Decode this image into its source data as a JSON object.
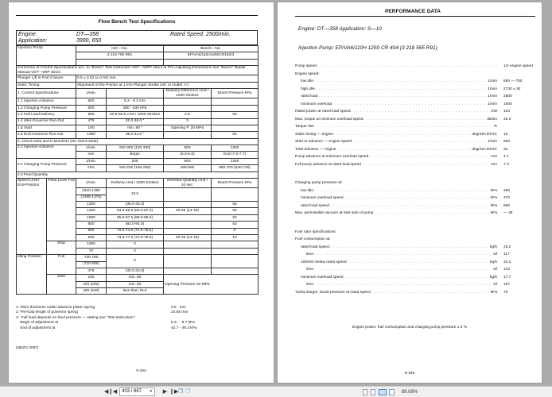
{
  "left_page": {
    "title": "Flow Bench Test Specifications",
    "header": {
      "engine_label": "Engine:",
      "engine_value": "DT—358",
      "rated_speed_label": "Rated Speed:",
      "rated_speed_value": "2500/min.",
      "application_label": "Application:",
      "application_value": "3990, 650"
    },
    "table": [
      [
        {
          "t": "Injection Pump",
          "cs": 2,
          "rs": 3,
          "va": "top"
        },
        {
          "t": "IHC—No.",
          "cs": 2,
          "c": 1
        },
        {
          "t": "Bosch—No.",
          "cs": 2,
          "c": 1
        }
      ],
      [
        {
          "t": "3 218 706 R91",
          "cs": 2,
          "c": 1
        },
        {
          "t": "EP/VA6/110H1250CR180/3",
          "cs": 2,
          "c": 1
        }
      ],
      [
        {
          "t": "",
          "cs": 2
        },
        {
          "t": "",
          "cs": 2
        }
      ],
      [
        {
          "t": "Correction of Control Specifications acc. to \"Bosch\" Test Instruction VDT—WPP 161/4 or Pre-Adjusting Dimensions see \"Bosch\" Repair Manual VDT—WIP 161/4",
          "cs": 6,
          "w": 1
        }
      ],
      [
        {
          "t": "Plunger Lift to Port Closure",
          "cs": 2
        },
        {
          "t": "0.5 ± 0.02 (± 0.04) mm",
          "cs": 4
        }
      ],
      [
        {
          "t": "Static Timing",
          "cs": 2
        },
        {
          "t": "Alignment of the Pointer at 1 mm Plunger Stroke (ref. to Outlet 'A')",
          "cs": 4
        }
      ],
      [
        {
          "t": "1.   Control Specifications",
          "cs": 2
        },
        {
          "t": "1/min.",
          "c": 1
        },
        {
          "t": ""
        },
        {
          "t": "Delivery Difference cm3 / 1000 Strokes",
          "c": 1,
          "w": 1
        },
        {
          "t": "Boost Pressure kPa",
          "c": 1,
          "w": 1
        }
      ],
      [
        {
          "t": "1.1 Injection Advance",
          "cs": 2
        },
        {
          "t": "800",
          "c": 1
        },
        {
          "t": "5.3 - 6.3 mm",
          "c": 1
        },
        {
          "t": ""
        },
        {
          "t": ""
        }
      ],
      [
        {
          "t": "1.2 Charging Pump Pressure",
          "cs": 2
        },
        {
          "t": "800",
          "c": 1
        },
        {
          "t": "480 - 530 kPa",
          "c": 1
        },
        {
          "t": ""
        },
        {
          "t": ""
        }
      ],
      [
        {
          "t": "1.3 Full Load Delivery",
          "cs": 2
        },
        {
          "t": "800",
          "c": 1
        },
        {
          "t": "92.5-93.5   cm3 / 1000 Strokes",
          "c": 1,
          "w": 1
        },
        {
          "t": "2.5",
          "c": 1
        },
        {
          "t": "53",
          "c": 1
        }
      ],
      [
        {
          "t": "1.4 Idler-Governor Run-Out",
          "cs": 2
        },
        {
          "t": "475",
          "c": 1
        },
        {
          "t": "32.0-38.0       \"",
          "c": 1
        },
        {
          "t": "3",
          "c": 1
        },
        {
          "t": ""
        }
      ],
      [
        {
          "t": "1.5 Start",
          "cs": 2
        },
        {
          "t": "100",
          "c": 1
        },
        {
          "t": "min. 80       \"",
          "c": 1
        },
        {
          "t": "Opening P. 20 MPa",
          "c": 1
        },
        {
          "t": ""
        }
      ],
      [
        {
          "t": "1.6 End-Governor Run-Out",
          "cs": 2
        },
        {
          "t": "1300",
          "c": 1
        },
        {
          "t": "36.0-44.0       \"",
          "c": 1
        },
        {
          "t": ""
        },
        {
          "t": "53",
          "c": 1
        }
      ],
      [
        {
          "t": "2.   Check Data and in Brackets (Re-check Data)",
          "cs": 6
        }
      ],
      [
        {
          "t": "2.1 Injection Advance",
          "cs": 2,
          "rs": 2,
          "va": "top"
        },
        {
          "t": "1/min.",
          "c": 1
        },
        {
          "t": "150-300 (120-330)",
          "c": 1
        },
        {
          "t": "800",
          "c": 1
        },
        {
          "t": "1250",
          "c": 1
        }
      ],
      [
        {
          "t": "mm",
          "c": 1
        },
        {
          "t": "Begin",
          "c": 1
        },
        {
          "t": "(5.0-6.8)",
          "c": 1
        },
        {
          "t": "End (7.0-7.7)",
          "c": 1
        }
      ],
      [
        {
          "t": "2.2 Charging Pump Pressure",
          "cs": 2,
          "rs": 2
        },
        {
          "t": "1/min.",
          "c": 1
        },
        {
          "t": "200",
          "c": 1
        },
        {
          "t": "800",
          "c": 1
        },
        {
          "t": "1250",
          "c": 1
        }
      ],
      [
        {
          "t": "kPa",
          "c": 1
        },
        {
          "t": "180-230 (160-250)",
          "c": 1
        },
        {
          "t": "480-550",
          "c": 1
        },
        {
          "t": "650-700 (630-720)",
          "c": 1
        }
      ],
      [
        {
          "t": "2.3 Feed Quantity",
          "cs": 6
        }
      ],
      [
        {
          "t": "Speed Lever End-Position",
          "rs": 11,
          "va": "top",
          "w": 1
        },
        {
          "t": "Feed Lever Full",
          "rs": 9,
          "va": "top",
          "c": 1,
          "w": 1
        },
        {
          "t": "1/min.",
          "c": 1
        },
        {
          "t": "Delivery cm3 / 1000 Strokes",
          "c": 1,
          "w": 1
        },
        {
          "t": "Overflow Quantity cm3 / 10 sec.",
          "c": 1,
          "w": 1
        },
        {
          "t": "Boost Pressure kPa",
          "c": 1,
          "w": 1
        }
      ],
      [
        {
          "t": "1310-1360",
          "c": 1
        },
        {
          "t": "10.0",
          "rs": 2,
          "c": 1
        },
        {
          "t": "",
          "rs": 2
        },
        {
          "t": "",
          "rs": 2
        }
      ],
      [
        {
          "t": "(1295-1375)",
          "c": 1
        }
      ],
      [
        {
          "t": "1300",
          "c": 1
        },
        {
          "t": "(35.0-45.0)",
          "c": 1
        },
        {
          "t": ""
        },
        {
          "t": "53",
          "c": 1
        }
      ],
      [
        {
          "t": "1200",
          "c": 1
        },
        {
          "t": "83.5-86.5 (83.0-87.0)",
          "c": 1
        },
        {
          "t": "20-35 (14-40)",
          "c": 1
        },
        {
          "t": "53",
          "c": 1
        }
      ],
      [
        {
          "t": "1000",
          "c": 1
        },
        {
          "t": "85.5-87.5 (85.0-88.0)",
          "c": 1
        },
        {
          "t": ""
        },
        {
          "t": "53",
          "c": 1
        }
      ],
      [
        {
          "t": "800",
          "c": 1
        },
        {
          "t": "(92.0-94.0)",
          "c": 1
        },
        {
          "t": ""
        },
        {
          "t": "53",
          "c": 1
        }
      ],
      [
        {
          "t": "800",
          "c": 1
        },
        {
          "t": "72.5-74.5 (71.5-75.5)",
          "c": 1
        },
        {
          "t": ""
        },
        {
          "t": "0",
          "c": 1
        }
      ],
      [
        {
          "t": "500",
          "c": 1
        },
        {
          "t": "73.0-77.0 (72.0-78.0)",
          "c": 1
        },
        {
          "t": "20-35 (14-40)",
          "c": 1
        },
        {
          "t": "10",
          "c": 1
        }
      ],
      [
        {
          "t": "Stop",
          "rs": 2,
          "va": "top",
          "c": 1
        },
        {
          "t": "1250",
          "c": 1
        },
        {
          "t": "0",
          "c": 1
        },
        {
          "t": ""
        },
        {
          "t": ""
        }
      ],
      [
        {
          "t": "70",
          "c": 1
        },
        {
          "t": "0",
          "c": 1
        },
        {
          "t": ""
        },
        {
          "t": ""
        }
      ],
      [
        {
          "t": "Idling Position",
          "rs": 6,
          "va": "top",
          "w": 1
        },
        {
          "t": "Full",
          "rs": 3,
          "va": "top",
          "c": 1
        },
        {
          "t": "730-780",
          "c": 1
        },
        {
          "t": "0",
          "rs": 2,
          "c": 1
        },
        {
          "t": "",
          "rs": 2
        },
        {
          "t": "",
          "rs": 2
        }
      ],
      [
        {
          "t": "(710-800)",
          "c": 1
        }
      ],
      [
        {
          "t": "475",
          "c": 1
        },
        {
          "t": "(30.0-40.0)",
          "c": 1
        },
        {
          "t": ""
        },
        {
          "t": ""
        }
      ],
      [
        {
          "t": "Start",
          "rs": 3,
          "va": "top",
          "c": 1
        },
        {
          "t": "100",
          "c": 1
        },
        {
          "t": "min. 80",
          "c": 1
        },
        {
          "t": "Opening Pressure 20 MPa",
          "cs": 2,
          "rs": 3,
          "w": 1
        }
      ],
      [
        {
          "t": "220 (200)",
          "c": 1
        },
        {
          "t": "min. 80",
          "c": 1
        }
      ],
      [
        {
          "t": "400 (420)",
          "c": 1
        },
        {
          "t": "less than 78.0",
          "c": 1
        }
      ]
    ],
    "notes": [
      {
        "label": "1: Shim thickness under advance piston spring",
        "value": "0.6   mm"
      },
      {
        "label": "2: Pre-load length of governor spring",
        "value": "24.65 mm"
      },
      {
        "label": "3:  Full load depends on feed pressure — setting see \"Test Instruction\"",
        "value": ""
      },
      {
        "label": "    Begin of adjustment at",
        "value": "5.3 -   8.7 kPa"
      },
      {
        "label": "    End of adjustment at",
        "value": "42.7 - 49.3 kPa"
      }
    ],
    "code": "(NEZG 4097)",
    "page_number": "5-194"
  },
  "right_page": {
    "title": "PERFORMANCE DATA",
    "engine_line": "Engine:   DT—358        Application:    S—10",
    "pump_line": "Injection Pump:   EP/VA6/110H 1250 CR 404     (3 218 565 R91)",
    "rows": [
      {
        "label": "Pump speed",
        "unit": "",
        "value": "1/2 engine speed",
        "indent": 0
      },
      {
        "label": "Engine speed:",
        "unit": "",
        "value": "",
        "indent": 0,
        "nodots": true
      },
      {
        "label": "low idle",
        "unit": "1/min",
        "value": "650 — 750",
        "indent": 1
      },
      {
        "label": "high idle",
        "unit": "1/min",
        "value": "2730 ± 30",
        "indent": 1
      },
      {
        "label": "rated load",
        "unit": "1/min",
        "value": "2500",
        "indent": 1
      },
      {
        "label": "minimum overload",
        "unit": "1/min",
        "value": "1600",
        "indent": 1
      },
      {
        "label": "Rated power at rated load speed",
        "unit": "kW",
        "value": "103",
        "indent": 0
      },
      {
        "label": "Max. torque at minimum overload speed",
        "unit": "daNm",
        "value": "46.3",
        "indent": 0
      },
      {
        "label": "Torque rise",
        "unit": "%",
        "value": "",
        "indent": 0
      },
      {
        "label": "Static timing — engine",
        "unit": "degrees BTDC",
        "value": "16",
        "indent": 0
      },
      {
        "label": "Start to advance — engine speed",
        "unit": "1/min",
        "value": "600",
        "indent": 0
      },
      {
        "label": "Total advance — engine",
        "unit": "degrees BTDC",
        "value": "32",
        "indent": 0
      },
      {
        "label": "Pump advance at minimum overload speed",
        "unit": "mm",
        "value": "4.7",
        "indent": 0
      },
      {
        "label": "Full pump advance at rated load speed",
        "unit": "mm",
        "value": "7.3",
        "indent": 0
      },
      {
        "label": "Charging pump pressure at:",
        "unit": "",
        "value": "",
        "indent": 0,
        "nodots": true,
        "gap": true
      },
      {
        "label": "low idle",
        "unit": "kPa",
        "value": "280",
        "indent": 1
      },
      {
        "label": "minimum overload speed",
        "unit": "kPa",
        "value": "470",
        "indent": 1
      },
      {
        "label": "rated load speed",
        "unit": "kPa",
        "value": "660",
        "indent": 1
      },
      {
        "label": "Max. permissible vacuum at inlet side of pump",
        "unit": "kPa",
        "value": "— 48",
        "indent": 0
      },
      {
        "label": "Fuel rator specifications:",
        "unit": "",
        "value": "",
        "indent": 0,
        "nodots": true,
        "gap": true
      },
      {
        "label": "Fuel consumption at:",
        "unit": "",
        "value": "",
        "indent": 0,
        "nodots": true
      },
      {
        "label": "rated load speed",
        "unit": "kg/h",
        "value": "25.2",
        "indent": 1
      },
      {
        "label": "time",
        "unit": "s/l",
        "value": "117",
        "indent": 2
      },
      {
        "label": "100/min below rated speed",
        "unit": "kg/h",
        "value": "24.2",
        "indent": 1
      },
      {
        "label": "time",
        "unit": "s/l",
        "value": "122",
        "indent": 2
      },
      {
        "label": "minimum overload speed",
        "unit": "kg/h",
        "value": "17.7",
        "indent": 1
      },
      {
        "label": "time",
        "unit": "s/l",
        "value": "167",
        "indent": 2
      },
      {
        "label": "Turbocharger, boost pressure at rated speed",
        "unit": "kPa",
        "value": "70",
        "indent": 0
      }
    ],
    "footnote": "Engine power, fuel consumption and charging pump pressure ± 3 %",
    "page_number": "5-195"
  },
  "toolbar": {
    "first_icon": "first-page-icon",
    "prev_icon": "prev-page-icon",
    "next_icon": "next-page-icon",
    "last_icon": "last-page-icon",
    "page_value": "403 / 887",
    "zoom": "89.08%",
    "view_modes": [
      "single-page",
      "continuous",
      "two-page",
      "continuous-two-page"
    ],
    "active_view": "two-page",
    "accent": "#4a7bd0"
  }
}
